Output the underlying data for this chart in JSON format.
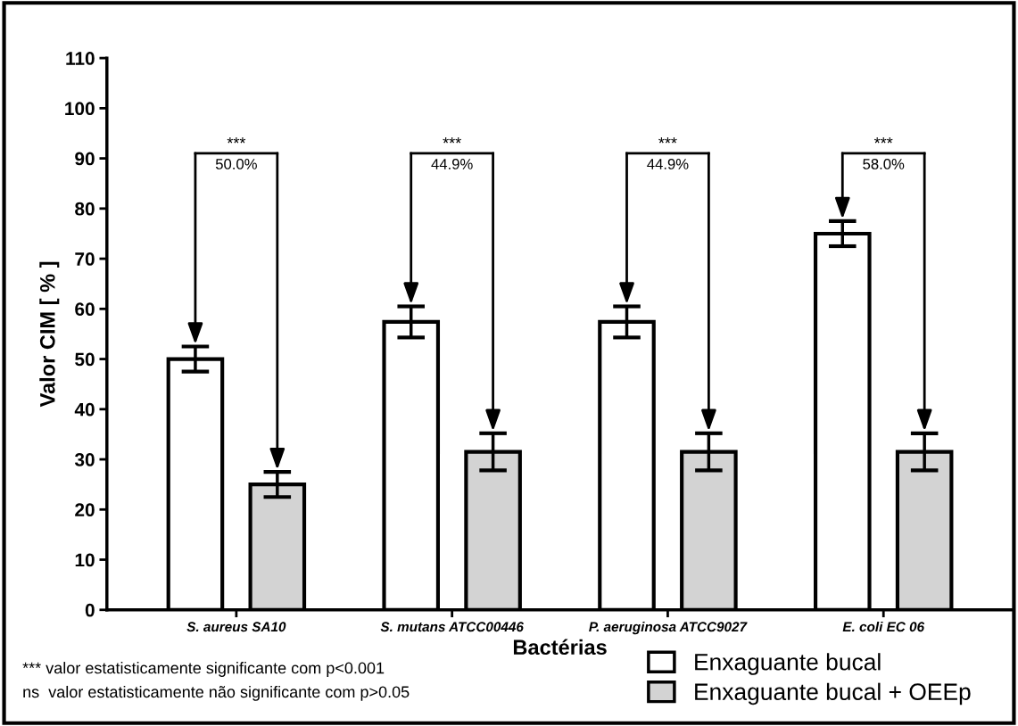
{
  "chart_data": {
    "type": "bar",
    "xlabel": "Bactérias",
    "ylabel": "Valor CIM [ % ]",
    "categories": [
      "S. aureus SA10",
      "S. mutans ATCC00446",
      "P. aeruginosa ATCC9027",
      "E. coli EC 06"
    ],
    "series": [
      {
        "name": "Enxaguante bucal",
        "color": "#ffffff",
        "values": [
          50,
          57.4,
          57.4,
          75
        ],
        "errors": [
          2.5,
          3.1,
          3.1,
          2.5
        ]
      },
      {
        "name": "Enxaguante bucal + OEEp",
        "color": "#d3d3d3",
        "values": [
          25,
          31.5,
          31.5,
          31.5
        ],
        "errors": [
          2.5,
          3.7,
          3.7,
          3.7
        ]
      }
    ],
    "ylim": [
      0,
      110
    ],
    "yticks": [
      0,
      10,
      20,
      30,
      40,
      50,
      60,
      70,
      80,
      90,
      100,
      110
    ],
    "grid": false,
    "legend": "bottom right",
    "annotations": [
      "***",
      "50.0%",
      "***",
      "44.9%",
      "***",
      "44.9%",
      "***",
      "58.0%",
      "*** valor estatisticamente significante com p<0.001",
      "ns  valor estatisticamente não significante com p>0.05"
    ]
  }
}
